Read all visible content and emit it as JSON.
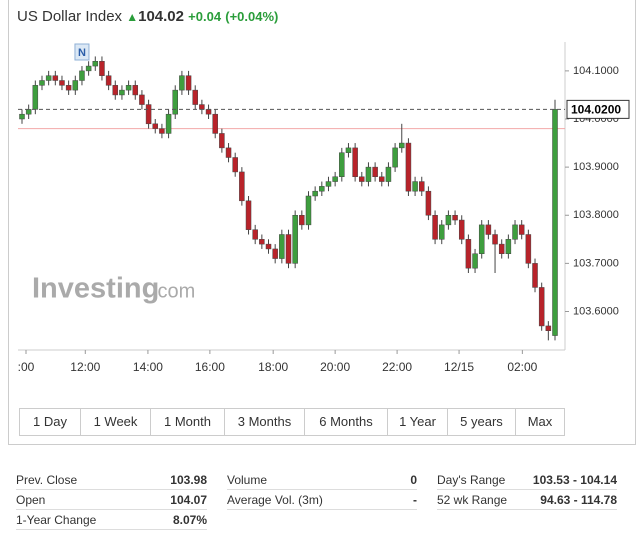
{
  "header": {
    "title": "US Dollar Index",
    "price": "104.02",
    "change": "+0.04",
    "change_percent": "(+0.04%)"
  },
  "chart_data": {
    "type": "candlestick",
    "watermark": "Investing",
    "watermark_suffix": ".com",
    "up_color": "#3e9e3e",
    "down_color": "#b8232a",
    "open": [
      104.0,
      104.01,
      104.02,
      104.07,
      104.08,
      104.09,
      104.08,
      104.07,
      104.06,
      104.08,
      104.1,
      104.11,
      104.12,
      104.09,
      104.07,
      104.05,
      104.06,
      104.07,
      104.05,
      104.03,
      103.99,
      103.98,
      103.97,
      104.01,
      104.06,
      104.09,
      104.06,
      104.03,
      104.02,
      104.01,
      103.97,
      103.94,
      103.92,
      103.89,
      103.83,
      103.77,
      103.75,
      103.74,
      103.73,
      103.71,
      103.76,
      103.7,
      103.8,
      103.78,
      103.84,
      103.85,
      103.86,
      103.87,
      103.88,
      103.93,
      103.94,
      103.88,
      103.87,
      103.9,
      103.88,
      103.87,
      103.9,
      103.94,
      103.95,
      103.85,
      103.87,
      103.85,
      103.8,
      103.75,
      103.78,
      103.8,
      103.79,
      103.75,
      103.69,
      103.72,
      103.78,
      103.76,
      103.74,
      103.72,
      103.75,
      103.78,
      103.76,
      103.7,
      103.65,
      103.57,
      103.55
    ],
    "high": [
      104.02,
      104.03,
      104.08,
      104.09,
      104.1,
      104.1,
      104.09,
      104.08,
      104.09,
      104.11,
      104.12,
      104.13,
      104.13,
      104.1,
      104.08,
      104.07,
      104.08,
      104.08,
      104.06,
      104.04,
      104.0,
      103.99,
      104.02,
      104.07,
      104.1,
      104.1,
      104.07,
      104.04,
      104.03,
      104.02,
      103.98,
      103.95,
      103.93,
      103.9,
      103.84,
      103.78,
      103.76,
      103.75,
      103.74,
      103.77,
      103.77,
      103.81,
      103.81,
      103.85,
      103.86,
      103.87,
      103.88,
      103.89,
      103.94,
      103.95,
      103.95,
      103.89,
      103.91,
      103.91,
      103.89,
      103.91,
      103.95,
      103.99,
      103.96,
      103.88,
      103.88,
      103.86,
      103.81,
      103.79,
      103.81,
      103.81,
      103.8,
      103.76,
      103.73,
      103.79,
      103.79,
      103.77,
      103.75,
      103.76,
      103.79,
      103.79,
      103.77,
      103.71,
      103.66,
      103.58,
      104.04
    ],
    "low": [
      103.99,
      104.0,
      104.01,
      104.06,
      104.07,
      104.07,
      104.06,
      104.05,
      104.05,
      104.07,
      104.09,
      104.1,
      104.08,
      104.06,
      104.04,
      104.04,
      104.05,
      104.04,
      104.02,
      103.98,
      103.97,
      103.96,
      103.96,
      104.0,
      104.05,
      104.05,
      104.02,
      104.01,
      104.0,
      103.96,
      103.93,
      103.91,
      103.88,
      103.82,
      103.76,
      103.74,
      103.73,
      103.72,
      103.7,
      103.7,
      103.69,
      103.69,
      103.77,
      103.77,
      103.83,
      103.84,
      103.85,
      103.86,
      103.87,
      103.92,
      103.87,
      103.86,
      103.86,
      103.87,
      103.86,
      103.86,
      103.89,
      103.93,
      103.84,
      103.84,
      103.84,
      103.79,
      103.74,
      103.74,
      103.77,
      103.78,
      103.74,
      103.68,
      103.68,
      103.71,
      103.75,
      103.68,
      103.71,
      103.71,
      103.74,
      103.75,
      103.69,
      103.64,
      103.56,
      103.54,
      103.54
    ],
    "close": [
      104.01,
      104.02,
      104.07,
      104.08,
      104.09,
      104.08,
      104.07,
      104.06,
      104.08,
      104.1,
      104.11,
      104.12,
      104.09,
      104.07,
      104.05,
      104.06,
      104.07,
      104.05,
      104.03,
      103.99,
      103.98,
      103.97,
      104.01,
      104.06,
      104.09,
      104.06,
      104.03,
      104.02,
      104.01,
      103.97,
      103.94,
      103.92,
      103.89,
      103.83,
      103.77,
      103.75,
      103.74,
      103.73,
      103.71,
      103.76,
      103.7,
      103.8,
      103.78,
      103.84,
      103.85,
      103.86,
      103.87,
      103.88,
      103.93,
      103.94,
      103.88,
      103.87,
      103.9,
      103.88,
      103.87,
      103.9,
      103.94,
      103.95,
      103.85,
      103.87,
      103.85,
      103.8,
      103.75,
      103.78,
      103.8,
      103.79,
      103.75,
      103.69,
      103.72,
      103.78,
      103.76,
      103.74,
      103.72,
      103.75,
      103.78,
      103.76,
      103.7,
      103.65,
      103.57,
      103.56,
      104.02
    ],
    "xlim": [
      -0.6,
      81.5
    ],
    "xticks": [
      {
        "value": 0.6,
        "label": ":00"
      },
      {
        "value": 9.5,
        "label": "12:00"
      },
      {
        "value": 18.9,
        "label": "14:00"
      },
      {
        "value": 28.2,
        "label": "16:00"
      },
      {
        "value": 37.7,
        "label": "18:00"
      },
      {
        "value": 47.0,
        "label": "20:00"
      },
      {
        "value": 56.3,
        "label": "22:00"
      },
      {
        "value": 65.6,
        "label": "12/15"
      },
      {
        "value": 75.1,
        "label": "02:00"
      }
    ],
    "ylim": [
      103.52,
      104.16
    ],
    "yticks": [
      {
        "value": 103.6,
        "label": "103.6000"
      },
      {
        "value": 103.7,
        "label": "103.7000"
      },
      {
        "value": 103.8,
        "label": "103.8000"
      },
      {
        "value": 103.9,
        "label": "103.9000"
      },
      {
        "value": 104.0,
        "label": "104.0000"
      },
      {
        "value": 104.1,
        "label": "104.1000"
      }
    ],
    "prev_close_line": 103.98,
    "last_price": {
      "value": 104.02,
      "label": "104.0200"
    },
    "annotations": [
      {
        "text": "N",
        "x": 9
      }
    ]
  },
  "ranges": [
    "1 Day",
    "1 Week",
    "1 Month",
    "3 Months",
    "6 Months",
    "1 Year",
    "5 years",
    "Max"
  ],
  "stats": {
    "rows": [
      [
        {
          "label": "Prev. Close",
          "value": "103.98"
        },
        {
          "label": "Volume",
          "value": "0"
        },
        {
          "label": "Day's Range",
          "value": "103.53 - 104.14"
        }
      ],
      [
        {
          "label": "Open",
          "value": "104.07"
        },
        {
          "label": "Average Vol. (3m)",
          "value": "-"
        },
        {
          "label": "52 wk Range",
          "value": "94.63 - 114.78"
        }
      ],
      [
        {
          "label": "1-Year Change",
          "value": "8.07%"
        }
      ]
    ]
  }
}
